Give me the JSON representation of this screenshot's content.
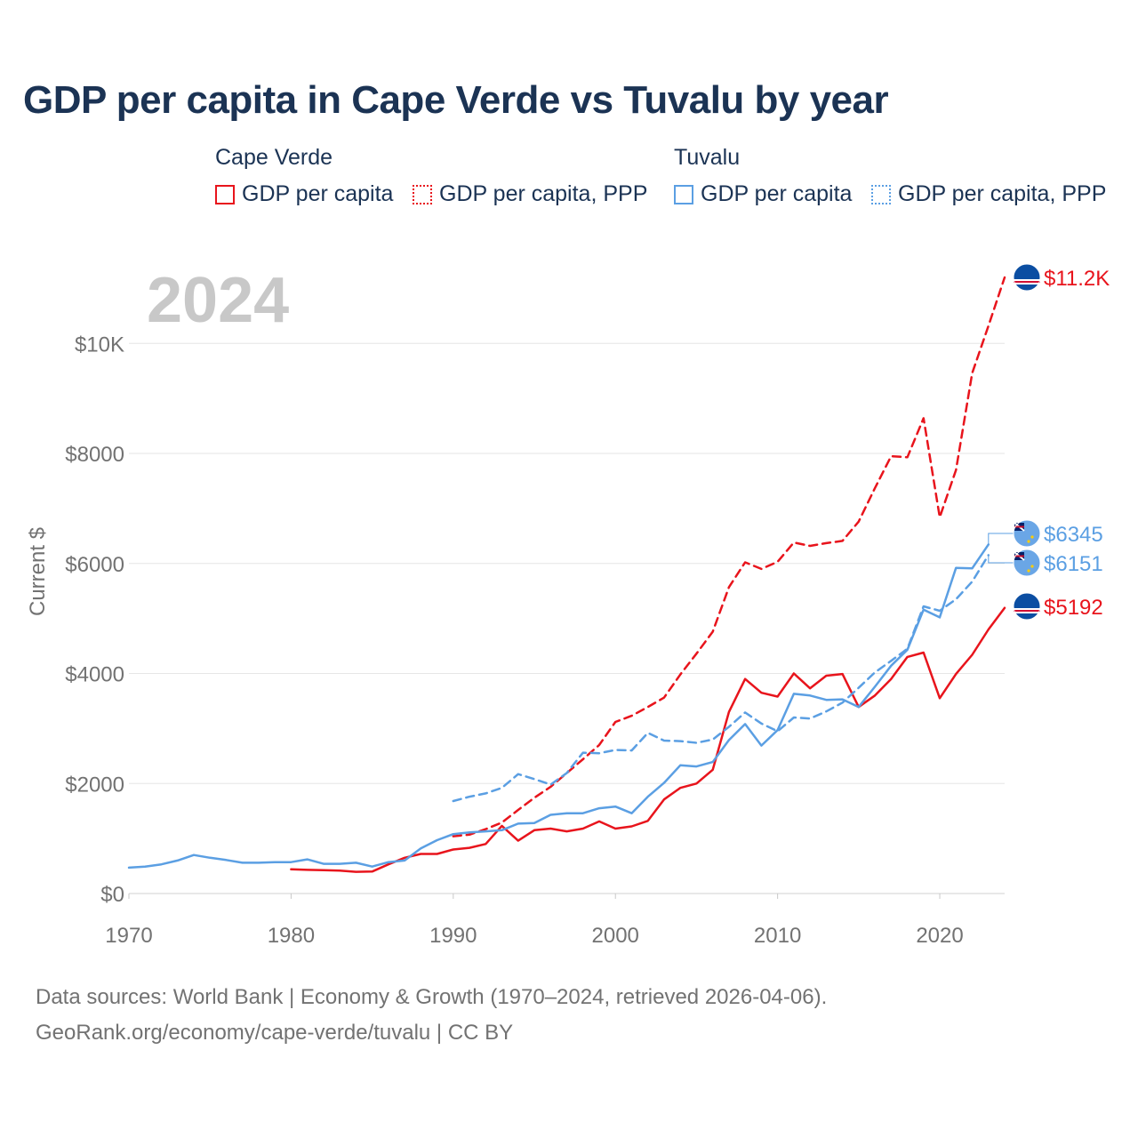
{
  "title": "GDP per capita in Cape Verde vs Tuvalu by year",
  "legend": {
    "groups": [
      {
        "country": "Cape Verde",
        "items": [
          "GDP per capita",
          "GDP per capita, PPP"
        ],
        "color": "#e8141c"
      },
      {
        "country": "Tuvalu",
        "items": [
          "GDP per capita",
          "GDP per capita, PPP"
        ],
        "color": "#5b9fe3"
      }
    ]
  },
  "year_watermark": "2024",
  "footer": {
    "line1": "Data sources: World Bank | Economy & Growth (1970–2024, retrieved 2026-04-06).",
    "line2": "GeoRank.org/economy/cape-verde/tuvalu | CC BY"
  },
  "chart_data": {
    "type": "line",
    "title": "GDP per capita in Cape Verde vs Tuvalu by year",
    "xlabel": "",
    "ylabel": "Current $",
    "xlim": [
      1970,
      2024
    ],
    "ylim": [
      0,
      11200
    ],
    "x_ticks": [
      1970,
      1980,
      1990,
      2000,
      2010,
      2020
    ],
    "y_ticks": [
      {
        "value": 0,
        "label": "$0"
      },
      {
        "value": 2000,
        "label": "$2000"
      },
      {
        "value": 4000,
        "label": "$4000"
      },
      {
        "value": 6000,
        "label": "$6000"
      },
      {
        "value": 8000,
        "label": "$8000"
      },
      {
        "value": 10000,
        "label": "$10K"
      }
    ],
    "grid": true,
    "series": [
      {
        "name": "Cape Verde GDP per capita",
        "country": "Cape Verde",
        "color": "#e8141c",
        "dashed": false,
        "end_label": "$5192",
        "x": [
          1980,
          1981,
          1982,
          1983,
          1984,
          1985,
          1986,
          1987,
          1988,
          1989,
          1990,
          1991,
          1992,
          1993,
          1994,
          1995,
          1996,
          1997,
          1998,
          1999,
          2000,
          2001,
          2002,
          2003,
          2004,
          2005,
          2006,
          2007,
          2008,
          2009,
          2010,
          2011,
          2012,
          2013,
          2014,
          2015,
          2016,
          2017,
          2018,
          2019,
          2020,
          2021,
          2022,
          2023,
          2024
        ],
        "values": [
          440,
          430,
          425,
          415,
          395,
          400,
          530,
          650,
          720,
          720,
          800,
          830,
          900,
          1230,
          960,
          1150,
          1180,
          1130,
          1180,
          1310,
          1180,
          1220,
          1320,
          1710,
          1920,
          2000,
          2250,
          3300,
          3900,
          3650,
          3580,
          4000,
          3730,
          3960,
          3990,
          3390,
          3600,
          3900,
          4300,
          4380,
          3550,
          3990,
          4340,
          4800,
          5192
        ]
      },
      {
        "name": "Cape Verde GDP per capita, PPP",
        "country": "Cape Verde",
        "color": "#e8141c",
        "dashed": true,
        "end_label": "$11.2K",
        "x": [
          1990,
          1991,
          1992,
          1993,
          1994,
          1995,
          1996,
          1997,
          1998,
          1999,
          2000,
          2001,
          2002,
          2003,
          2004,
          2005,
          2006,
          2007,
          2008,
          2009,
          2010,
          2011,
          2012,
          2013,
          2014,
          2015,
          2016,
          2017,
          2018,
          2019,
          2020,
          2021,
          2022,
          2023,
          2024
        ],
        "values": [
          1040,
          1070,
          1170,
          1290,
          1520,
          1740,
          1940,
          2190,
          2440,
          2700,
          3120,
          3230,
          3390,
          3560,
          3980,
          4360,
          4760,
          5570,
          6020,
          5900,
          6030,
          6380,
          6320,
          6370,
          6410,
          6760,
          7370,
          7950,
          7930,
          8640,
          6840,
          7700,
          9460,
          10320,
          11200
        ]
      },
      {
        "name": "Tuvalu GDP per capita",
        "country": "Tuvalu",
        "color": "#5b9fe3",
        "dashed": false,
        "end_label": "$6345",
        "x": [
          1970,
          1971,
          1972,
          1973,
          1974,
          1975,
          1976,
          1977,
          1978,
          1979,
          1980,
          1981,
          1982,
          1983,
          1984,
          1985,
          1986,
          1987,
          1988,
          1989,
          1990,
          1991,
          1992,
          1993,
          1994,
          1995,
          1996,
          1997,
          1998,
          1999,
          2000,
          2001,
          2002,
          2003,
          2004,
          2005,
          2006,
          2007,
          2008,
          2009,
          2010,
          2011,
          2012,
          2013,
          2014,
          2015,
          2016,
          2017,
          2018,
          2019,
          2020,
          2021,
          2022,
          2023
        ],
        "values": [
          470,
          490,
          530,
          600,
          700,
          650,
          610,
          560,
          560,
          570,
          570,
          620,
          540,
          540,
          560,
          490,
          570,
          600,
          820,
          970,
          1080,
          1110,
          1130,
          1150,
          1270,
          1280,
          1430,
          1460,
          1460,
          1550,
          1580,
          1460,
          1760,
          2010,
          2330,
          2310,
          2390,
          2790,
          3080,
          2690,
          2970,
          3630,
          3600,
          3520,
          3530,
          3390,
          3760,
          4140,
          4430,
          5160,
          5020,
          5920,
          5910,
          6345
        ]
      },
      {
        "name": "Tuvalu GDP per capita, PPP",
        "country": "Tuvalu",
        "color": "#5b9fe3",
        "dashed": true,
        "end_label": "$6151",
        "x": [
          1990,
          1991,
          1992,
          1993,
          1994,
          1995,
          1996,
          1997,
          1998,
          1999,
          2000,
          2001,
          2002,
          2003,
          2004,
          2005,
          2006,
          2007,
          2008,
          2009,
          2010,
          2011,
          2012,
          2013,
          2014,
          2015,
          2016,
          2017,
          2018,
          2019,
          2020,
          2021,
          2022,
          2023
        ],
        "values": [
          1680,
          1760,
          1820,
          1920,
          2170,
          2080,
          1980,
          2190,
          2560,
          2550,
          2610,
          2600,
          2920,
          2780,
          2770,
          2740,
          2800,
          3030,
          3290,
          3090,
          2950,
          3200,
          3180,
          3310,
          3470,
          3740,
          4020,
          4230,
          4450,
          5220,
          5140,
          5350,
          5670,
          6151
        ]
      }
    ]
  }
}
